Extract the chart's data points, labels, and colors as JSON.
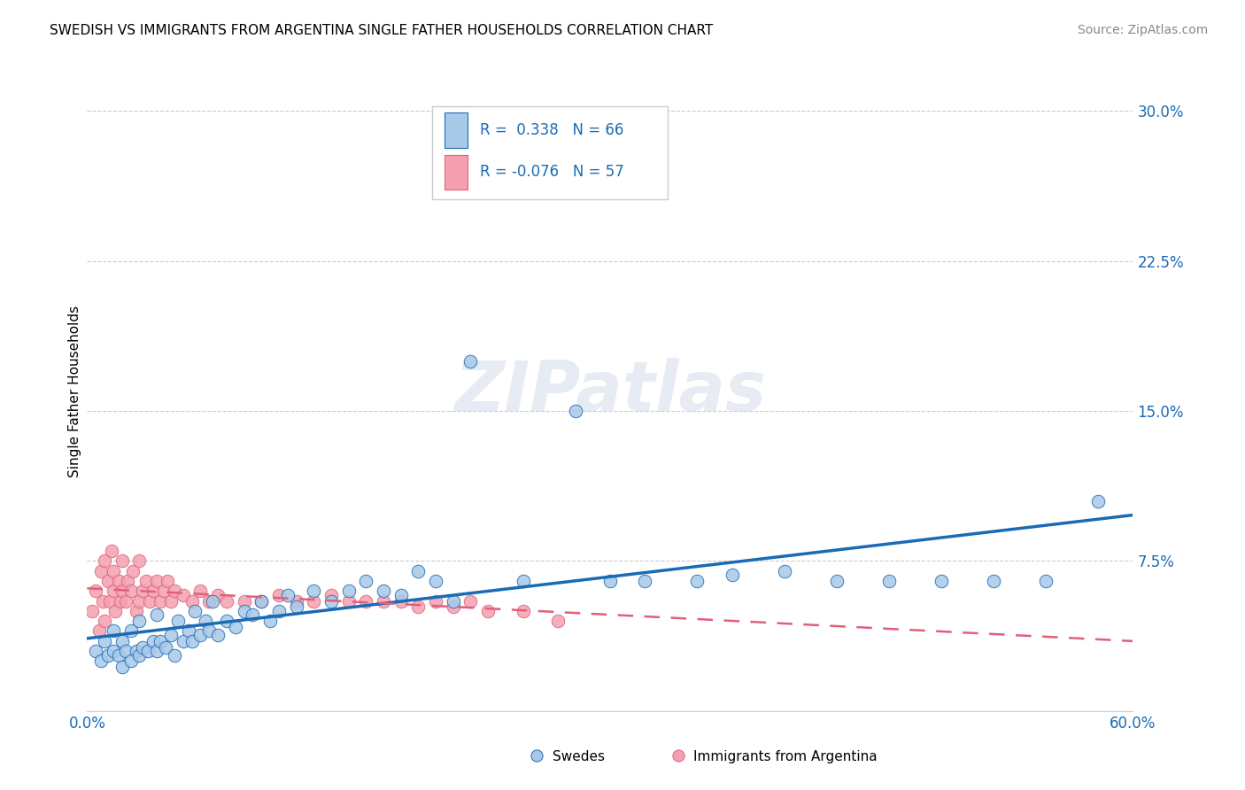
{
  "title": "SWEDISH VS IMMIGRANTS FROM ARGENTINA SINGLE FATHER HOUSEHOLDS CORRELATION CHART",
  "source": "Source: ZipAtlas.com",
  "ylabel": "Single Father Households",
  "ytick_vals": [
    0.075,
    0.15,
    0.225,
    0.3
  ],
  "ytick_labels": [
    "7.5%",
    "15.0%",
    "22.5%",
    "30.0%"
  ],
  "xlim": [
    0.0,
    0.6
  ],
  "ylim": [
    0.0,
    0.32
  ],
  "swedes_R": 0.338,
  "swedes_N": 66,
  "argentina_R": -0.076,
  "argentina_N": 57,
  "swedes_color": "#a8c8e8",
  "argentina_color": "#f4a0b0",
  "swedes_line_color": "#1a6bb5",
  "argentina_line_color": "#e0607a",
  "background_color": "#ffffff",
  "swedes_x": [
    0.005,
    0.008,
    0.01,
    0.012,
    0.015,
    0.015,
    0.018,
    0.02,
    0.02,
    0.022,
    0.025,
    0.025,
    0.028,
    0.03,
    0.03,
    0.032,
    0.035,
    0.038,
    0.04,
    0.04,
    0.042,
    0.045,
    0.048,
    0.05,
    0.052,
    0.055,
    0.058,
    0.06,
    0.062,
    0.065,
    0.068,
    0.07,
    0.072,
    0.075,
    0.08,
    0.085,
    0.09,
    0.095,
    0.1,
    0.105,
    0.11,
    0.115,
    0.12,
    0.13,
    0.14,
    0.15,
    0.16,
    0.17,
    0.18,
    0.19,
    0.2,
    0.21,
    0.22,
    0.25,
    0.28,
    0.3,
    0.32,
    0.35,
    0.37,
    0.4,
    0.43,
    0.46,
    0.49,
    0.52,
    0.55,
    0.58
  ],
  "swedes_y": [
    0.03,
    0.025,
    0.035,
    0.028,
    0.03,
    0.04,
    0.028,
    0.022,
    0.035,
    0.03,
    0.025,
    0.04,
    0.03,
    0.028,
    0.045,
    0.032,
    0.03,
    0.035,
    0.03,
    0.048,
    0.035,
    0.032,
    0.038,
    0.028,
    0.045,
    0.035,
    0.04,
    0.035,
    0.05,
    0.038,
    0.045,
    0.04,
    0.055,
    0.038,
    0.045,
    0.042,
    0.05,
    0.048,
    0.055,
    0.045,
    0.05,
    0.058,
    0.052,
    0.06,
    0.055,
    0.06,
    0.065,
    0.06,
    0.058,
    0.07,
    0.065,
    0.055,
    0.175,
    0.065,
    0.15,
    0.065,
    0.065,
    0.065,
    0.068,
    0.07,
    0.065,
    0.065,
    0.065,
    0.065,
    0.065,
    0.105
  ],
  "argentina_x": [
    0.003,
    0.005,
    0.007,
    0.008,
    0.009,
    0.01,
    0.01,
    0.012,
    0.013,
    0.014,
    0.015,
    0.015,
    0.016,
    0.018,
    0.019,
    0.02,
    0.02,
    0.022,
    0.023,
    0.025,
    0.026,
    0.028,
    0.03,
    0.03,
    0.032,
    0.034,
    0.036,
    0.038,
    0.04,
    0.042,
    0.044,
    0.046,
    0.048,
    0.05,
    0.055,
    0.06,
    0.065,
    0.07,
    0.075,
    0.08,
    0.09,
    0.1,
    0.11,
    0.12,
    0.13,
    0.14,
    0.15,
    0.16,
    0.17,
    0.18,
    0.19,
    0.2,
    0.21,
    0.22,
    0.23,
    0.25,
    0.27
  ],
  "argentina_y": [
    0.05,
    0.06,
    0.04,
    0.07,
    0.055,
    0.045,
    0.075,
    0.065,
    0.055,
    0.08,
    0.06,
    0.07,
    0.05,
    0.065,
    0.055,
    0.06,
    0.075,
    0.055,
    0.065,
    0.06,
    0.07,
    0.05,
    0.055,
    0.075,
    0.06,
    0.065,
    0.055,
    0.06,
    0.065,
    0.055,
    0.06,
    0.065,
    0.055,
    0.06,
    0.058,
    0.055,
    0.06,
    0.055,
    0.058,
    0.055,
    0.055,
    0.055,
    0.058,
    0.055,
    0.055,
    0.058,
    0.055,
    0.055,
    0.055,
    0.055,
    0.052,
    0.055,
    0.052,
    0.055,
    0.05,
    0.05,
    0.045
  ]
}
